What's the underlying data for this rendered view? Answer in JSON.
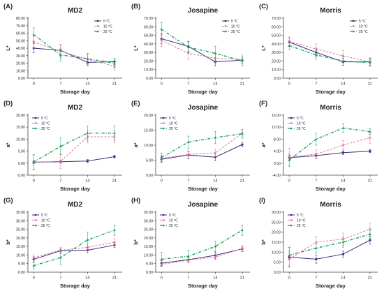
{
  "colors": {
    "five": "#3d2a7a",
    "ten": "#e07a9a",
    "twentyfive": "#1aa05a"
  },
  "chart_data": [
    {
      "panel": "(A)",
      "title": "MD2",
      "type": "line",
      "xlabel": "Storage day",
      "ylabel": "L*",
      "x": [
        0,
        7,
        14,
        21
      ],
      "ylim": [
        0,
        80
      ],
      "yticks": [
        0,
        10,
        20,
        30,
        40,
        50,
        60,
        70,
        80
      ],
      "decimals": 2,
      "series": [
        {
          "name": "5 °C",
          "values": [
            40,
            37,
            21,
            22
          ],
          "errors": [
            6,
            8,
            4,
            4
          ]
        },
        {
          "name": "10 °C",
          "values": [
            48,
            36,
            25,
            16
          ],
          "errors": [
            8,
            9,
            7,
            5
          ]
        },
        {
          "name": "25 °C",
          "values": [
            58,
            31,
            26,
            20
          ],
          "errors": [
            9,
            8,
            7,
            6
          ]
        }
      ]
    },
    {
      "panel": "(B)",
      "title": "Josapine",
      "type": "line",
      "xlabel": "Storage day",
      "ylabel": "L*",
      "x": [
        0,
        7,
        14,
        21
      ],
      "ylim": [
        0,
        70
      ],
      "yticks": [
        0,
        10,
        20,
        30,
        40,
        50,
        60,
        70
      ],
      "decimals": 2,
      "series": [
        {
          "name": "5 °C",
          "values": [
            46,
            37,
            19,
            21
          ],
          "errors": [
            6,
            6,
            5,
            4
          ]
        },
        {
          "name": "10 °C",
          "values": [
            44,
            29,
            23,
            22
          ],
          "errors": [
            7,
            7,
            6,
            5
          ]
        },
        {
          "name": "25 °C",
          "values": [
            57,
            36,
            29,
            20
          ],
          "errors": [
            8,
            6,
            8,
            5
          ]
        }
      ]
    },
    {
      "panel": "(C)",
      "title": "Morris",
      "type": "line",
      "xlabel": "Storage day",
      "ylabel": "L*",
      "x": [
        0,
        7,
        14,
        21
      ],
      "ylim": [
        0,
        70
      ],
      "yticks": [
        0,
        10,
        20,
        30,
        40,
        50,
        60,
        70
      ],
      "decimals": 2,
      "series": [
        {
          "name": "5 °C",
          "values": [
            42,
            30,
            19,
            19
          ],
          "errors": [
            5,
            5,
            4,
            4
          ]
        },
        {
          "name": "10 °C",
          "values": [
            43,
            34,
            26,
            19
          ],
          "errors": [
            5,
            6,
            6,
            5
          ]
        },
        {
          "name": "25 °C",
          "values": [
            38,
            27,
            20,
            18
          ],
          "errors": [
            5,
            5,
            5,
            4
          ]
        }
      ]
    },
    {
      "panel": "(D)",
      "title": "MD2",
      "type": "line",
      "xlabel": "Storage day",
      "ylabel": "a*",
      "x": [
        0,
        7,
        14,
        21
      ],
      "ylim": [
        -5,
        20
      ],
      "yticks": [
        -5,
        0,
        5,
        10,
        15,
        20
      ],
      "decimals": 2,
      "series": [
        {
          "name": "5 °C",
          "values": [
            0.4,
            0.6,
            0.9,
            2.7
          ],
          "errors": [
            0.6,
            0.6,
            0.6,
            0.5
          ]
        },
        {
          "name": "10 °C",
          "values": [
            0.3,
            0.8,
            11.0,
            11.0
          ],
          "errors": [
            3.0,
            3.0,
            2.5,
            2.5
          ]
        },
        {
          "name": "25 °C",
          "values": [
            0.5,
            7.0,
            12.5,
            12.5
          ],
          "errors": [
            3.0,
            3.5,
            3.0,
            3.0
          ]
        }
      ]
    },
    {
      "panel": "(E)",
      "title": "Josapine",
      "type": "line",
      "xlabel": "Storage day",
      "ylabel": "a*",
      "x": [
        0,
        7,
        14,
        21
      ],
      "ylim": [
        0,
        20
      ],
      "yticks": [
        0,
        5,
        10,
        15,
        20
      ],
      "decimals": 2,
      "series": [
        {
          "name": "5 °C",
          "values": [
            5.3,
            6.7,
            6.0,
            10.2
          ],
          "errors": [
            1.0,
            1.2,
            1.2,
            0.8
          ]
        },
        {
          "name": "10 °C",
          "values": [
            5.6,
            6.9,
            7.4,
            14.0
          ],
          "errors": [
            1.0,
            1.2,
            1.2,
            1.0
          ]
        },
        {
          "name": "25 °C",
          "values": [
            5.9,
            11.0,
            12.5,
            13.8
          ],
          "errors": [
            1.5,
            2.0,
            2.0,
            1.5
          ]
        }
      ]
    },
    {
      "panel": "(F)",
      "title": "Morris",
      "type": "line",
      "xlabel": "Storage day",
      "ylabel": "a*",
      "x": [
        0,
        7,
        14,
        21
      ],
      "ylim": [
        -4,
        16
      ],
      "yticks": [
        -4,
        0,
        4,
        8,
        12,
        16
      ],
      "decimals": 2,
      "series": [
        {
          "name": "5 °C",
          "values": [
            1.8,
            2.5,
            3.5,
            4.0
          ],
          "errors": [
            0.8,
            0.8,
            0.6,
            0.5
          ]
        },
        {
          "name": "10 °C",
          "values": [
            2.0,
            3.0,
            6.0,
            8.5
          ],
          "errors": [
            3.0,
            1.5,
            1.5,
            2.0
          ]
        },
        {
          "name": "25 °C",
          "values": [
            1.0,
            8.0,
            11.7,
            10.5
          ],
          "errors": [
            2.0,
            2.0,
            1.5,
            1.0
          ]
        }
      ]
    },
    {
      "panel": "(G)",
      "title": "MD2",
      "type": "line",
      "xlabel": "Storage day",
      "ylabel": "b*",
      "x": [
        0,
        7,
        14,
        21
      ],
      "ylim": [
        0,
        35
      ],
      "yticks": [
        0,
        5,
        10,
        15,
        20,
        25,
        30,
        35
      ],
      "decimals": 2,
      "series": [
        {
          "name": "5 °C",
          "values": [
            7.5,
            12.5,
            12.8,
            15.8
          ],
          "errors": [
            1.5,
            1.5,
            1.5,
            1.5
          ]
        },
        {
          "name": "10 °C",
          "values": [
            8.5,
            12.8,
            14.5,
            17.5
          ],
          "errors": [
            1.5,
            1.5,
            2.0,
            2.0
          ]
        },
        {
          "name": "25 °C",
          "values": [
            3.8,
            8.5,
            18.8,
            24.5
          ],
          "errors": [
            2.0,
            4.0,
            4.5,
            3.0
          ]
        }
      ]
    },
    {
      "panel": "(H)",
      "title": "Josapine",
      "type": "line",
      "xlabel": "Storage day",
      "ylabel": "b*",
      "x": [
        0,
        7,
        14,
        21
      ],
      "ylim": [
        0,
        35
      ],
      "yticks": [
        0,
        5,
        10,
        15,
        20,
        25,
        30,
        35
      ],
      "decimals": 2,
      "series": [
        {
          "name": "5 °C",
          "values": [
            5.2,
            7.3,
            9.8,
            13.6
          ],
          "errors": [
            1.5,
            1.5,
            2.0,
            1.5
          ]
        },
        {
          "name": "10 °C",
          "values": [
            4.5,
            7.0,
            8.8,
            13.8
          ],
          "errors": [
            1.5,
            1.5,
            1.5,
            1.5
          ]
        },
        {
          "name": "25 °C",
          "values": [
            7.5,
            9.3,
            15.0,
            24.5
          ],
          "errors": [
            4.0,
            3.5,
            3.0,
            3.0
          ]
        }
      ]
    },
    {
      "panel": "(I)",
      "title": "Morris",
      "type": "line",
      "xlabel": "Storage day",
      "ylabel": "b*",
      "x": [
        0,
        7,
        14,
        21
      ],
      "ylim": [
        0,
        30
      ],
      "yticks": [
        0,
        5,
        10,
        15,
        20,
        25,
        30
      ],
      "decimals": 2,
      "series": [
        {
          "name": "5 °C",
          "values": [
            7.5,
            6.5,
            9.0,
            16.0
          ],
          "errors": [
            5.0,
            2.0,
            1.5,
            2.0
          ]
        },
        {
          "name": "10 °C",
          "values": [
            6.5,
            15.0,
            16.5,
            21.5
          ],
          "errors": [
            3.0,
            3.0,
            3.0,
            3.0
          ]
        },
        {
          "name": "25 °C",
          "values": [
            8.5,
            12.0,
            15.0,
            19.0
          ],
          "errors": [
            2.0,
            2.5,
            2.5,
            2.0
          ]
        }
      ]
    }
  ]
}
